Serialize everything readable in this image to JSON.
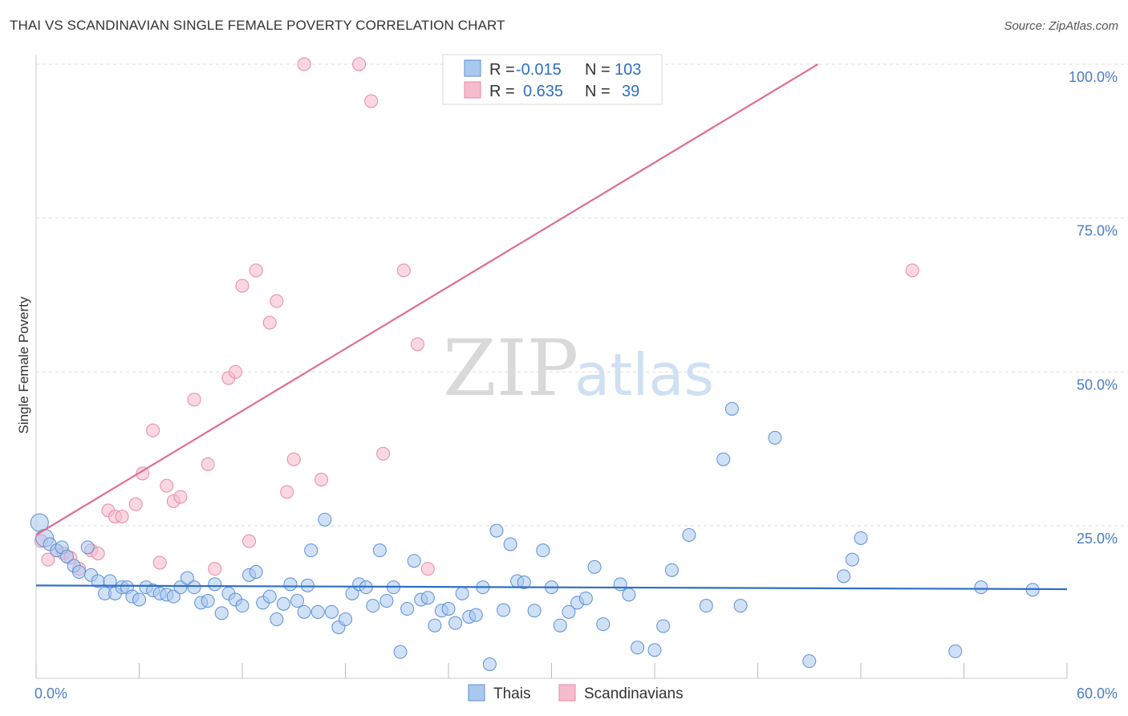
{
  "title": "THAI VS SCANDINAVIAN SINGLE FEMALE POVERTY CORRELATION CHART",
  "source": "Source: ZipAtlas.com",
  "watermark": {
    "zip": "ZIP",
    "atlas": "atlas"
  },
  "legend": {
    "rows": [
      {
        "r_label": "R =",
        "r_value": "-0.015",
        "n_label": "N =",
        "n_value": "103"
      },
      {
        "r_label": "R =",
        "r_value": "0.635",
        "n_label": "N =",
        "n_value": "39"
      }
    ]
  },
  "colors": {
    "thais_fill": "#a9c8ee",
    "thais_stroke": "#5b8fd6",
    "thais_line": "#2f6fc4",
    "scand_fill": "#f6bccd",
    "scand_stroke": "#e58aa7",
    "scand_line": "#e06c93",
    "axis_text": "#4a7cc7",
    "grid": "#dddddd"
  },
  "chart_data": {
    "type": "scatter",
    "ylabel": "Single Female Poverty",
    "x_ticks": [
      "0.0%",
      "60.0%"
    ],
    "y_ticks": [
      "25.0%",
      "50.0%",
      "75.0%",
      "100.0%"
    ],
    "xlim": [
      0,
      60
    ],
    "ylim": [
      0,
      100
    ],
    "grid": true,
    "legend_placement": "top-center",
    "series": [
      {
        "name": "Thais",
        "trend": {
          "x": [
            0,
            60
          ],
          "y": [
            15.3,
            14.7
          ]
        },
        "points": [
          [
            0.2,
            25.5
          ],
          [
            0.5,
            23
          ],
          [
            0.8,
            22
          ],
          [
            1.2,
            21
          ],
          [
            1.5,
            21.5
          ],
          [
            1.8,
            20
          ],
          [
            2.2,
            18.5
          ],
          [
            2.5,
            17.5
          ],
          [
            3,
            21.5
          ],
          [
            3.2,
            17
          ],
          [
            3.6,
            16
          ],
          [
            4,
            14
          ],
          [
            4.3,
            16
          ],
          [
            4.6,
            14
          ],
          [
            5,
            15
          ],
          [
            5.3,
            15
          ],
          [
            5.6,
            13.5
          ],
          [
            6,
            13
          ],
          [
            6.4,
            15
          ],
          [
            6.8,
            14.5
          ],
          [
            7.2,
            14
          ],
          [
            7.6,
            13.8
          ],
          [
            8,
            13.5
          ],
          [
            8.4,
            15
          ],
          [
            8.8,
            16.5
          ],
          [
            9.2,
            15
          ],
          [
            9.6,
            12.5
          ],
          [
            10,
            12.8
          ],
          [
            10.4,
            15.5
          ],
          [
            10.8,
            10.8
          ],
          [
            11.2,
            14
          ],
          [
            11.6,
            13
          ],
          [
            12,
            12
          ],
          [
            12.4,
            17
          ],
          [
            12.8,
            17.5
          ],
          [
            13.2,
            12.5
          ],
          [
            13.6,
            13.5
          ],
          [
            14,
            9.8
          ],
          [
            14.4,
            12.3
          ],
          [
            14.8,
            15.5
          ],
          [
            15.2,
            12.8
          ],
          [
            15.6,
            11
          ],
          [
            16,
            21
          ],
          [
            16.4,
            11
          ],
          [
            16.8,
            26
          ],
          [
            17.2,
            11
          ],
          [
            17.6,
            8.5
          ],
          [
            18,
            9.8
          ],
          [
            18.4,
            14
          ],
          [
            18.8,
            15.5
          ],
          [
            19.2,
            15
          ],
          [
            19.6,
            12
          ],
          [
            20,
            21
          ],
          [
            20.4,
            12.8
          ],
          [
            20.8,
            15
          ],
          [
            21.2,
            4.5
          ],
          [
            21.6,
            11.5
          ],
          [
            22,
            19.3
          ],
          [
            22.4,
            13
          ],
          [
            22.8,
            13.3
          ],
          [
            23.2,
            8.8
          ],
          [
            23.6,
            11.2
          ],
          [
            24,
            11.5
          ],
          [
            24.4,
            9.2
          ],
          [
            24.8,
            14
          ],
          [
            25.2,
            10.2
          ],
          [
            25.6,
            10.5
          ],
          [
            26,
            15
          ],
          [
            26.4,
            2.5
          ],
          [
            26.8,
            24.2
          ],
          [
            27.2,
            11.3
          ],
          [
            27.6,
            22
          ],
          [
            28,
            16
          ],
          [
            28.4,
            15.8
          ],
          [
            29,
            11.2
          ],
          [
            29.5,
            21
          ],
          [
            30,
            15
          ],
          [
            30.5,
            8.8
          ],
          [
            31,
            11
          ],
          [
            31.5,
            12.5
          ],
          [
            32,
            13.2
          ],
          [
            32.5,
            18.3
          ],
          [
            33,
            9
          ],
          [
            34,
            15.5
          ],
          [
            34.5,
            13.8
          ],
          [
            35,
            5.2
          ],
          [
            36,
            4.8
          ],
          [
            36.5,
            8.7
          ],
          [
            37,
            17.8
          ],
          [
            38,
            23.5
          ],
          [
            39,
            12
          ],
          [
            40,
            35.8
          ],
          [
            40.5,
            44
          ],
          [
            41,
            12
          ],
          [
            43,
            39.3
          ],
          [
            45,
            3
          ],
          [
            47,
            16.8
          ],
          [
            47.5,
            19.5
          ],
          [
            48,
            23
          ],
          [
            53.5,
            4.6
          ],
          [
            55,
            15
          ],
          [
            58,
            14.6
          ],
          [
            15.8,
            15.3
          ]
        ]
      },
      {
        "name": "Scandinavians",
        "trend": {
          "x": [
            0,
            45.5
          ],
          "y": [
            23.5,
            100
          ]
        },
        "points": [
          [
            0.3,
            22.5
          ],
          [
            0.7,
            19.5
          ],
          [
            1.2,
            21
          ],
          [
            1.6,
            20.5
          ],
          [
            2,
            19.8
          ],
          [
            2.5,
            18
          ],
          [
            3.2,
            21
          ],
          [
            3.6,
            20.5
          ],
          [
            4.2,
            27.5
          ],
          [
            4.6,
            26.5
          ],
          [
            5,
            26.5
          ],
          [
            5.8,
            28.5
          ],
          [
            6.2,
            33.5
          ],
          [
            6.8,
            40.5
          ],
          [
            7.2,
            19
          ],
          [
            7.6,
            31.5
          ],
          [
            8,
            29
          ],
          [
            8.4,
            29.7
          ],
          [
            9.2,
            45.5
          ],
          [
            10,
            35
          ],
          [
            10.4,
            18
          ],
          [
            11.2,
            49
          ],
          [
            11.6,
            50
          ],
          [
            12,
            64
          ],
          [
            12.4,
            22.5
          ],
          [
            12.8,
            66.5
          ],
          [
            13.6,
            58
          ],
          [
            14,
            61.5
          ],
          [
            14.6,
            30.5
          ],
          [
            15,
            35.8
          ],
          [
            15.6,
            100
          ],
          [
            16.6,
            32.5
          ],
          [
            18.8,
            100
          ],
          [
            19.5,
            94
          ],
          [
            20.2,
            36.7
          ],
          [
            21.4,
            66.5
          ],
          [
            22.2,
            54.5
          ],
          [
            51,
            66.5
          ],
          [
            22.8,
            18
          ]
        ]
      }
    ]
  }
}
